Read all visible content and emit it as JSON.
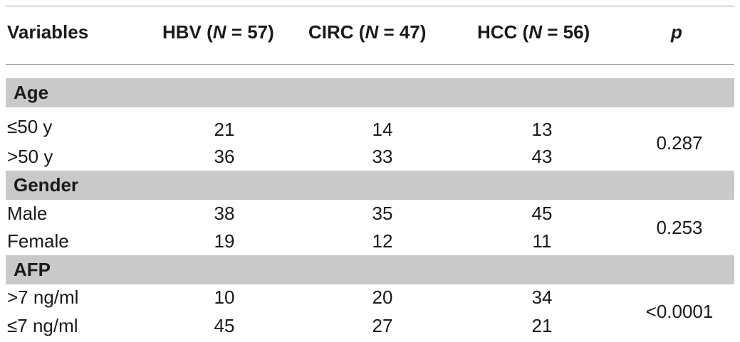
{
  "header": {
    "variables": "Variables",
    "hbv_name": "HBV (",
    "hbv_n": "N",
    "hbv_count": " = 57)",
    "circ_name": "CIRC (",
    "circ_n": "N",
    "circ_count": " = 47)",
    "hcc_name": "HCC (",
    "hcc_n": "N",
    "hcc_count": " = 56)",
    "p": "p"
  },
  "sections": [
    {
      "title": "Age",
      "p": "0.287",
      "rows": [
        {
          "label": "≤50 y",
          "hbv": "21",
          "circ": "14",
          "hcc": "13"
        },
        {
          "label": ">50 y",
          "hbv": "36",
          "circ": "33",
          "hcc": "43"
        }
      ]
    },
    {
      "title": "Gender",
      "p": "0.253",
      "rows": [
        {
          "label": "Male",
          "hbv": "38",
          "circ": "35",
          "hcc": "45"
        },
        {
          "label": "Female",
          "hbv": "19",
          "circ": "12",
          "hcc": "11"
        }
      ]
    },
    {
      "title": "AFP",
      "p": "<0.0001",
      "rows": [
        {
          "label": ">7 ng/ml",
          "hbv": "10",
          "circ": "20",
          "hcc": "34"
        },
        {
          "label": "≤7 ng/ml",
          "hbv": "45",
          "circ": "27",
          "hcc": "21"
        }
      ]
    }
  ]
}
